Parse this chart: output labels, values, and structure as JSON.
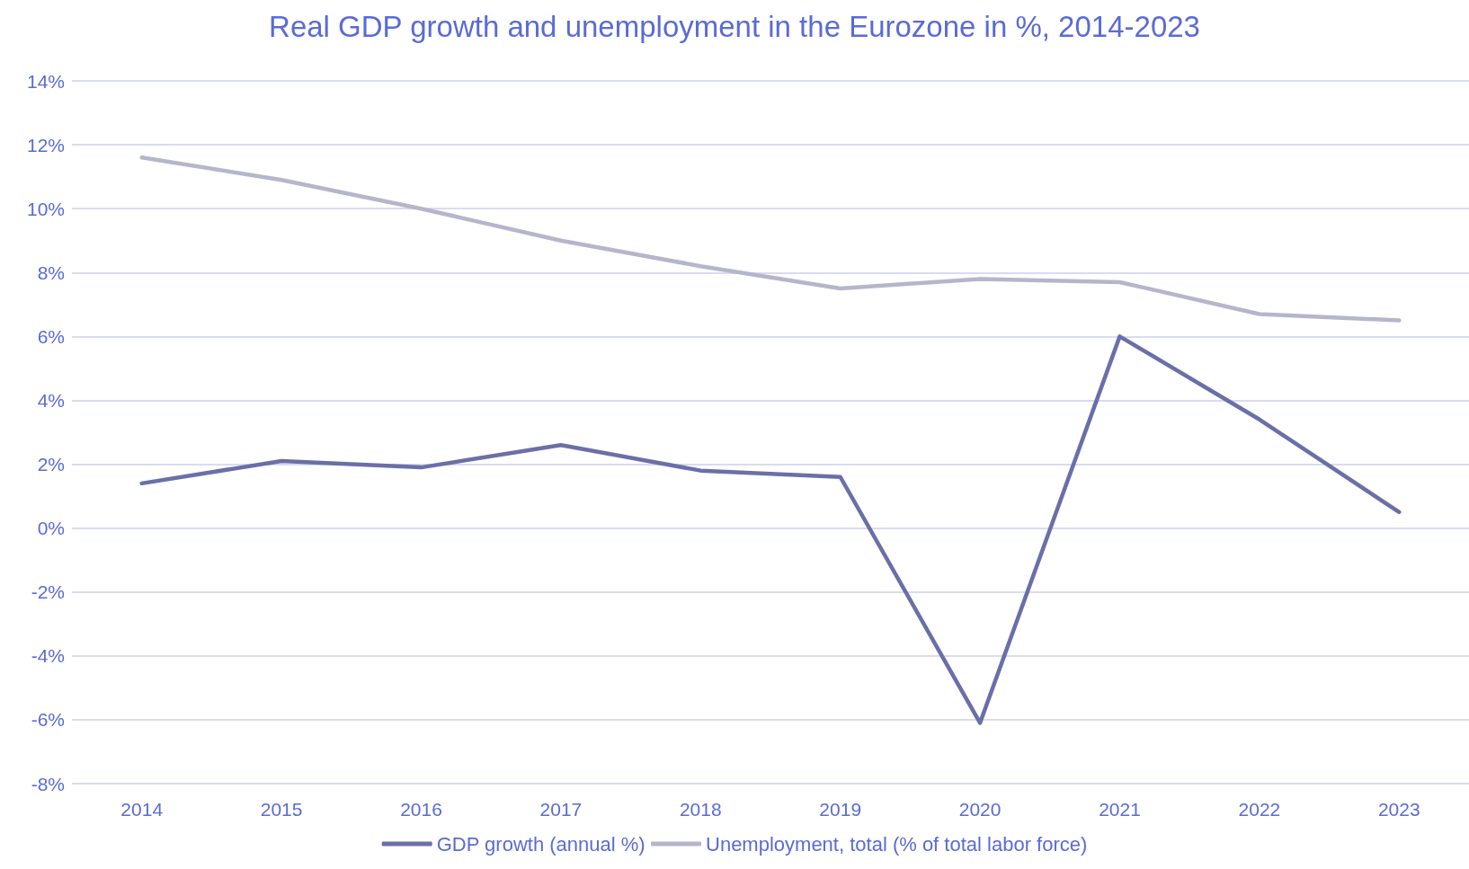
{
  "chart_data": {
    "type": "line",
    "title": "Real GDP growth and unemployment in the Eurozone in %, 2014-2023",
    "categories": [
      "2014",
      "2015",
      "2016",
      "2017",
      "2018",
      "2019",
      "2020",
      "2021",
      "2022",
      "2023"
    ],
    "series": [
      {
        "name": "GDP growth (annual %)",
        "color": "#6b6fa8",
        "values": [
          1.4,
          2.1,
          1.9,
          2.6,
          1.8,
          1.6,
          -6.1,
          6.0,
          3.4,
          0.5
        ]
      },
      {
        "name": "Unemployment, total (% of total labor force)",
        "color": "#b5b6cc",
        "values": [
          11.6,
          10.9,
          10.0,
          9.0,
          8.2,
          7.5,
          7.8,
          7.7,
          6.7,
          6.5
        ]
      }
    ],
    "ylim": [
      -8,
      14
    ],
    "yticks": [
      {
        "value": -8,
        "label": "-8%"
      },
      {
        "value": -6,
        "label": "-6%"
      },
      {
        "value": -4,
        "label": "-4%"
      },
      {
        "value": -2,
        "label": "-2%"
      },
      {
        "value": 0,
        "label": "0%"
      },
      {
        "value": 2,
        "label": "2%"
      },
      {
        "value": 4,
        "label": "4%"
      },
      {
        "value": 6,
        "label": "6%"
      },
      {
        "value": 8,
        "label": "8%"
      },
      {
        "value": 10,
        "label": "10%"
      },
      {
        "value": 12,
        "label": "12%"
      },
      {
        "value": 14,
        "label": "14%"
      }
    ],
    "grid": "y",
    "legend": "bottom",
    "marker": "none",
    "line_style": "solid"
  }
}
